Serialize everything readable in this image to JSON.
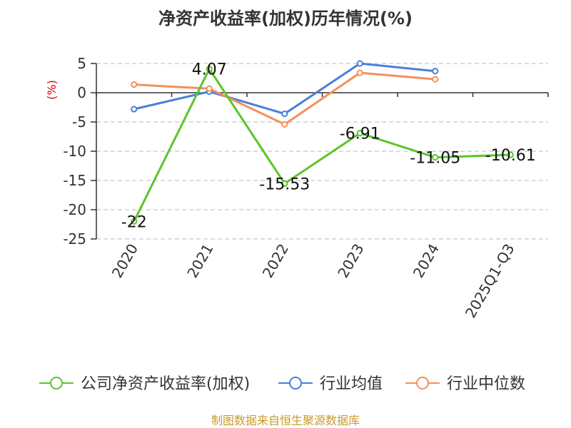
{
  "chart_data": {
    "type": "line",
    "title": "净资产收益率(加权)历年情况(%)",
    "unit_label": "(%)",
    "categories": [
      "2020",
      "2021",
      "2022",
      "2023",
      "2024",
      "2025Q1-Q3"
    ],
    "ylim": [
      -25,
      5
    ],
    "yticks": [
      5,
      0,
      -5,
      -10,
      -15,
      -20,
      -25
    ],
    "grid": true,
    "legend_position": "bottom",
    "series": [
      {
        "name": "公司净资产收益率(加权)",
        "color": "#5cc42b",
        "values": [
          -22,
          4.07,
          -15.53,
          -6.91,
          -11.05,
          -10.61
        ],
        "labels": [
          "-22",
          "4.07",
          "-15.53",
          "-6.91",
          "-11.05",
          "-10.61"
        ]
      },
      {
        "name": "行业均值",
        "color": "#4a7fdc",
        "values": [
          -2.8,
          0.2,
          -3.6,
          5.0,
          3.7,
          null
        ]
      },
      {
        "name": "行业中位数",
        "color": "#f5905a",
        "values": [
          1.4,
          0.7,
          -5.4,
          3.4,
          2.3,
          null
        ]
      }
    ]
  },
  "footer": {
    "source": "制图数据来自恒生聚源数据库"
  }
}
